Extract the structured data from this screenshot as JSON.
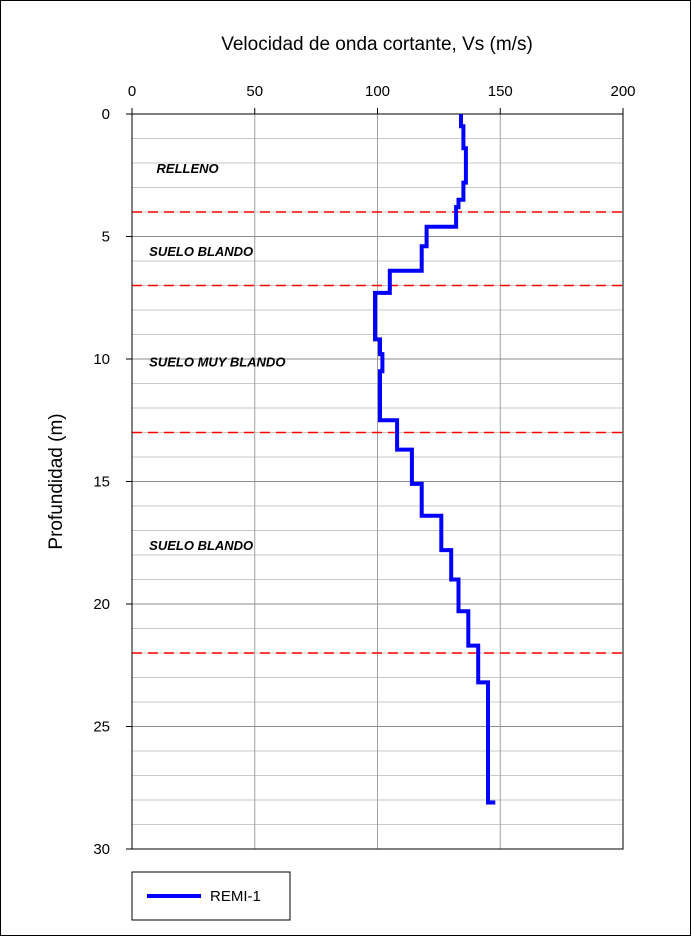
{
  "chart_data": {
    "type": "line",
    "title": "Velocidad de onda cortante, Vs (m/s)",
    "xlabel": "Velocidad de onda cortante, Vs (m/s)",
    "ylabel": "Profundidad (m)",
    "xlim": [
      0,
      200
    ],
    "ylim": [
      0,
      30
    ],
    "y_inverted": true,
    "x_axis_position": "top",
    "x_ticks": [
      "0",
      "50",
      "100",
      "150",
      "200"
    ],
    "y_ticks": [
      "0",
      "5",
      "10",
      "15",
      "20",
      "25",
      "30"
    ],
    "x_tick_values": [
      0,
      50,
      100,
      150,
      200
    ],
    "y_tick_values": [
      0,
      5,
      10,
      15,
      20,
      25,
      30
    ],
    "major_gridlines_x": [
      50,
      100,
      150
    ],
    "minor_gridlines_y": [
      1,
      2,
      3,
      4,
      5,
      6,
      7,
      8,
      9,
      10,
      11,
      12,
      13,
      14,
      15,
      16,
      17,
      18,
      19,
      20,
      21,
      22,
      23,
      24,
      25,
      26,
      27,
      28,
      29
    ],
    "grid": true,
    "legend_position": "bottom-left",
    "series": [
      {
        "name": "REMI-1",
        "color": "#0000ff",
        "points": [
          [
            134,
            0
          ],
          [
            134,
            0.5
          ],
          [
            135,
            0.5
          ],
          [
            135,
            1.0
          ],
          [
            135,
            1.4
          ],
          [
            136,
            1.4
          ],
          [
            136,
            2.0
          ],
          [
            136,
            2.8
          ],
          [
            135,
            2.8
          ],
          [
            135,
            3.5
          ],
          [
            133,
            3.5
          ],
          [
            133,
            3.8
          ],
          [
            132,
            3.8
          ],
          [
            132,
            4.6
          ],
          [
            120,
            4.6
          ],
          [
            120,
            5.4
          ],
          [
            118,
            5.4
          ],
          [
            118,
            6.4
          ],
          [
            105,
            6.4
          ],
          [
            105,
            7.3
          ],
          [
            99,
            7.3
          ],
          [
            99,
            9.2
          ],
          [
            101,
            9.2
          ],
          [
            101,
            9.8
          ],
          [
            102,
            9.8
          ],
          [
            102,
            10.5
          ],
          [
            101,
            10.5
          ],
          [
            101,
            11.3
          ],
          [
            101,
            12.5
          ],
          [
            108,
            12.5
          ],
          [
            108,
            13.7
          ],
          [
            114,
            13.7
          ],
          [
            114,
            15.1
          ],
          [
            118,
            15.1
          ],
          [
            118,
            16.4
          ],
          [
            126,
            16.4
          ],
          [
            126,
            17.8
          ],
          [
            130,
            17.8
          ],
          [
            130,
            19.0
          ],
          [
            133,
            19.0
          ],
          [
            133,
            20.3
          ],
          [
            137,
            20.3
          ],
          [
            137,
            21.7
          ],
          [
            141,
            21.7
          ],
          [
            141,
            23.2
          ],
          [
            145,
            23.2
          ],
          [
            145,
            27.0
          ],
          [
            145,
            28.1
          ],
          [
            148,
            28.1
          ]
        ]
      }
    ],
    "boundaries": {
      "color": "#ff0000",
      "depths": [
        4,
        7,
        13,
        22
      ]
    },
    "annotations": [
      {
        "text": "RELLENO",
        "x": 10,
        "y": 2.2
      },
      {
        "text": "SUELO BLANDO",
        "x": 7,
        "y": 5.6
      },
      {
        "text": "SUELO MUY BLANDO",
        "x": 7,
        "y": 10.1
      },
      {
        "text": "SUELO BLANDO",
        "x": 7,
        "y": 17.6
      }
    ]
  }
}
